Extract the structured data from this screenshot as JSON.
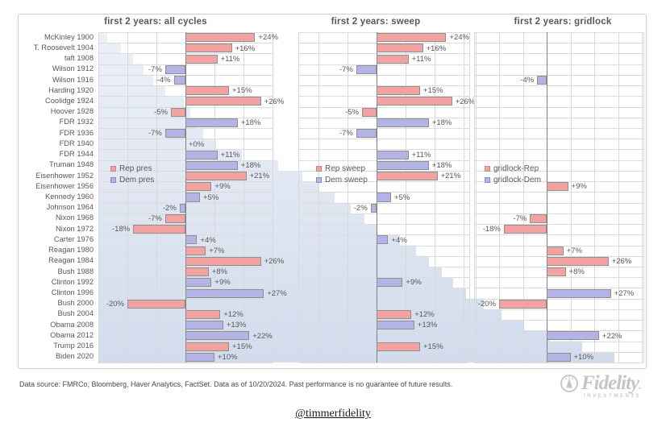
{
  "footer": {
    "disclaimer": "Data source: FMRCo, Bloomberg, Haver Analytics, FactSet. Data as of 10/20/2024. Past performance is no guarantee of future results.",
    "handle": "@timmerfidelity",
    "logo_brand": "Fidelity",
    "logo_sub": "INVESTMENTS"
  },
  "chart_data": {
    "type": "bar",
    "orientation": "horizontal",
    "unit": "percent return, first 2 years of presidential term",
    "categories": [
      "McKinley 1900",
      "T. Roosevelt 1904",
      "taft 1908",
      "Wilson 1912",
      "Wilson 1916",
      "Harding 1920",
      "Coolidge 1924",
      "Hoover 1928",
      "FDR 1932",
      "FDR 1936",
      "FDR 1940",
      "FDR 1944",
      "Truman 1948",
      "Eisenhower 1952",
      "Eisenhower 1956",
      "Kennedy 1960",
      "Johnson 1964",
      "Nixon 1968",
      "Nixon 1972",
      "Carter 1976",
      "Reagan 1980",
      "Reagan 1984",
      "Bush 1988",
      "Clinton 1992",
      "Clinton 1996",
      "Bush 2000",
      "Bush 2004",
      "Obama 2008",
      "Obama 2012",
      "Trump 2016",
      "Biden 2020"
    ],
    "party": [
      "R",
      "R",
      "R",
      "D",
      "D",
      "R",
      "R",
      "R",
      "D",
      "D",
      "D",
      "D",
      "D",
      "R",
      "R",
      "D",
      "D",
      "R",
      "R",
      "D",
      "R",
      "R",
      "R",
      "D",
      "D",
      "R",
      "R",
      "D",
      "D",
      "R",
      "D"
    ],
    "panels": [
      {
        "title": "first 2 years: all cycles",
        "legend": [
          {
            "label": "Rep pres",
            "party": "R"
          },
          {
            "label": "Dem pres",
            "party": "D"
          }
        ],
        "values": [
          24,
          16,
          11,
          -7,
          -4,
          15,
          26,
          -5,
          18,
          -7,
          0,
          11,
          18,
          21,
          9,
          5,
          -2,
          -7,
          -18,
          4,
          7,
          26,
          8,
          9,
          27,
          -20,
          12,
          13,
          22,
          15,
          10
        ]
      },
      {
        "title": "first 2 years: sweep",
        "legend": [
          {
            "label": "Rep sweep",
            "party": "R"
          },
          {
            "label": "Dem sweep",
            "party": "D"
          }
        ],
        "values": [
          24,
          16,
          11,
          -7,
          null,
          15,
          26,
          -5,
          18,
          -7,
          null,
          11,
          18,
          21,
          null,
          5,
          -2,
          null,
          null,
          4,
          null,
          null,
          null,
          9,
          null,
          null,
          12,
          13,
          null,
          15,
          null
        ]
      },
      {
        "title": "first 2 years: gridlock",
        "legend": [
          {
            "label": "gridlock-Rep",
            "party": "R"
          },
          {
            "label": "gridlock-Dem",
            "party": "D"
          }
        ],
        "values": [
          null,
          null,
          null,
          null,
          -4,
          null,
          null,
          null,
          null,
          null,
          null,
          null,
          null,
          null,
          9,
          null,
          null,
          -7,
          -18,
          null,
          7,
          26,
          8,
          null,
          27,
          -20,
          null,
          null,
          22,
          null,
          10
        ]
      }
    ],
    "xlim": [
      -30,
      30
    ],
    "gridline_step": 10,
    "colors": {
      "rep_fill": "#F2A3A1",
      "dem_fill": "#B3B3E6",
      "bar_border": "#8f8f8f",
      "grid": "#d9d9d9",
      "axis": "#7f7f7f",
      "text": "#595959",
      "watermark": "#bcc9e2"
    }
  }
}
